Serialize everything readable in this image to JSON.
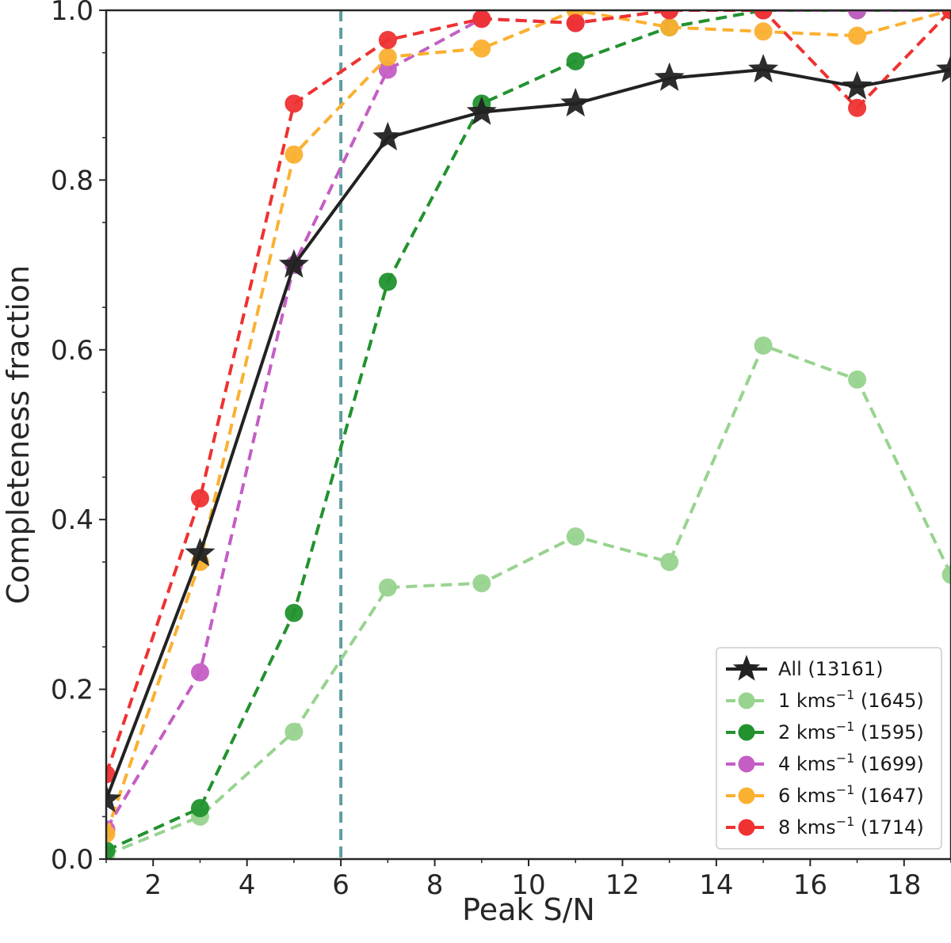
{
  "chart_data": {
    "type": "line",
    "xlabel": "Peak S/N",
    "ylabel": "Completeness fraction",
    "xlim": [
      1,
      19
    ],
    "ylim": [
      0,
      1
    ],
    "xticks": [
      "2",
      "4",
      "6",
      "8",
      "10",
      "12",
      "14",
      "16",
      "18"
    ],
    "yticks": [
      "0.0",
      "0.2",
      "0.4",
      "0.6",
      "0.8",
      "1.0"
    ],
    "x": [
      1,
      3,
      5,
      7,
      9,
      11,
      13,
      15,
      17,
      19
    ],
    "grid": false,
    "legend_position": "lower-right",
    "reference_line": {
      "x": 6,
      "color": "#5f9ea0",
      "style": "dashed"
    },
    "series": [
      {
        "name_main": "All (13161)",
        "name_pre": "",
        "name_sup": "",
        "name_post": "",
        "marker": "star",
        "linestyle": "solid",
        "color": "#222222",
        "values": [
          0.07,
          0.36,
          0.7,
          0.85,
          0.88,
          0.89,
          0.92,
          0.93,
          0.91,
          0.93
        ]
      },
      {
        "name_main": "",
        "name_pre": "1 kms",
        "name_sup": "−1",
        "name_post": " (1645)",
        "marker": "circle",
        "linestyle": "dashed",
        "color": "#98d38f",
        "values": [
          0.005,
          0.05,
          0.15,
          0.32,
          0.325,
          0.38,
          0.35,
          0.605,
          0.565,
          0.335
        ]
      },
      {
        "name_main": "",
        "name_pre": "2 kms",
        "name_sup": "−1",
        "name_post": " (1595)",
        "marker": "circle",
        "linestyle": "dashed",
        "color": "#22922e",
        "values": [
          0.01,
          0.06,
          0.29,
          0.68,
          0.89,
          0.94,
          0.98,
          1.0,
          1.0,
          1.0
        ]
      },
      {
        "name_main": "",
        "name_pre": "4 kms",
        "name_sup": "−1",
        "name_post": " (1699)",
        "marker": "circle",
        "linestyle": "dashed",
        "color": "#c45ec4",
        "values": [
          0.035,
          0.22,
          0.7,
          0.93,
          0.99,
          0.985,
          1.0,
          1.0,
          1.0,
          1.0
        ]
      },
      {
        "name_main": "",
        "name_pre": "6 kms",
        "name_sup": "−1",
        "name_post": " (1647)",
        "marker": "circle",
        "linestyle": "dashed",
        "color": "#fbb030",
        "values": [
          0.03,
          0.35,
          0.83,
          0.945,
          0.955,
          1.0,
          0.98,
          0.975,
          0.97,
          1.0
        ]
      },
      {
        "name_main": "",
        "name_pre": "8 kms",
        "name_sup": "−1",
        "name_post": " (1714)",
        "marker": "circle",
        "linestyle": "dashed",
        "color": "#ef3131",
        "values": [
          0.1,
          0.425,
          0.89,
          0.965,
          0.99,
          0.985,
          1.0,
          1.0,
          0.885,
          1.0
        ]
      }
    ]
  }
}
